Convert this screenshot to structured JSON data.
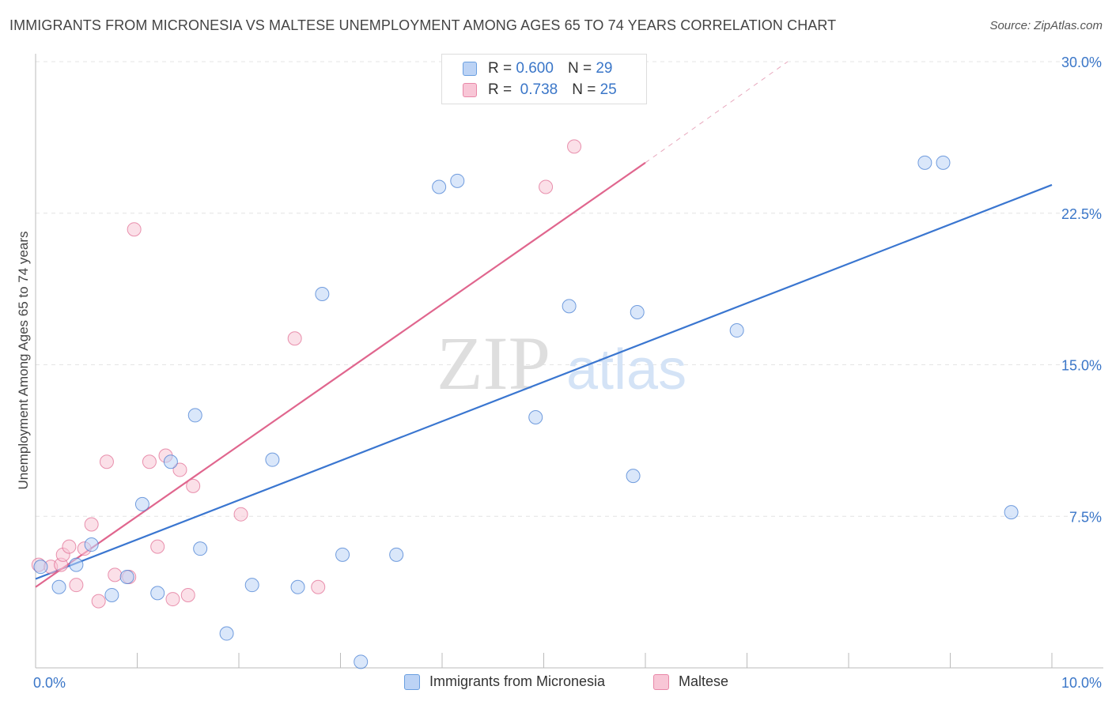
{
  "title": "IMMIGRANTS FROM MICRONESIA VS MALTESE UNEMPLOYMENT AMONG AGES 65 TO 74 YEARS CORRELATION CHART",
  "source": "Source: ZipAtlas.com",
  "watermark": {
    "zip": "ZIP",
    "atlas": "atlas"
  },
  "legend": {
    "micronesia": {
      "r_label": "R =",
      "r_value": "0.600",
      "n_label": "N =",
      "n_value": "29",
      "color": "#6a9fe0",
      "fill": "#bcd3f5"
    },
    "maltese": {
      "r_label": "R =",
      "r_value": "0.738",
      "n_label": "N =",
      "n_value": "25",
      "color": "#e888a8",
      "fill": "#f8c6d6"
    }
  },
  "bottom_legend": {
    "micronesia": "Immigrants from Micronesia",
    "maltese": "Maltese"
  },
  "chart_data": {
    "type": "scatter",
    "title": "IMMIGRANTS FROM MICRONESIA VS MALTESE UNEMPLOYMENT AMONG AGES 65 TO 74 YEARS CORRELATION CHART",
    "xlabel": "",
    "ylabel": "Unemployment Among Ages 65 to 74 years",
    "xlim": [
      0,
      10
    ],
    "ylim": [
      0,
      30
    ],
    "x_tick_labels": [
      "0.0%",
      "10.0%"
    ],
    "y_ticks": [
      7.5,
      15.0,
      22.5,
      30.0
    ],
    "y_tick_labels": [
      "7.5%",
      "15.0%",
      "22.5%",
      "30.0%"
    ],
    "grid": true,
    "series": [
      {
        "name": "Immigrants from Micronesia",
        "color": "#3a76d0",
        "fill": "#bcd3f5",
        "points": [
          [
            0.05,
            5.0
          ],
          [
            0.23,
            4.0
          ],
          [
            0.4,
            5.1
          ],
          [
            0.55,
            6.1
          ],
          [
            0.75,
            3.6
          ],
          [
            0.9,
            4.5
          ],
          [
            1.05,
            8.1
          ],
          [
            1.2,
            3.7
          ],
          [
            1.33,
            10.2
          ],
          [
            1.57,
            12.5
          ],
          [
            1.62,
            5.9
          ],
          [
            1.88,
            1.7
          ],
          [
            2.13,
            4.1
          ],
          [
            2.33,
            10.3
          ],
          [
            2.58,
            4.0
          ],
          [
            2.82,
            18.5
          ],
          [
            3.02,
            5.6
          ],
          [
            3.2,
            0.3
          ],
          [
            3.55,
            5.6
          ],
          [
            3.97,
            23.8
          ],
          [
            4.15,
            24.1
          ],
          [
            4.92,
            12.4
          ],
          [
            5.25,
            17.9
          ],
          [
            5.88,
            9.5
          ],
          [
            5.92,
            17.6
          ],
          [
            6.9,
            16.7
          ],
          [
            8.75,
            25.0
          ],
          [
            8.93,
            25.0
          ],
          [
            9.6,
            7.7
          ]
        ],
        "trend": {
          "x": [
            0,
            10
          ],
          "y": [
            4.4,
            23.9
          ]
        }
      },
      {
        "name": "Maltese",
        "color": "#e0668e",
        "fill": "#f8c6d6",
        "points": [
          [
            0.03,
            5.1
          ],
          [
            0.15,
            5.0
          ],
          [
            0.25,
            5.1
          ],
          [
            0.27,
            5.6
          ],
          [
            0.33,
            6.0
          ],
          [
            0.4,
            4.1
          ],
          [
            0.48,
            5.9
          ],
          [
            0.55,
            7.1
          ],
          [
            0.62,
            3.3
          ],
          [
            0.7,
            10.2
          ],
          [
            0.78,
            4.6
          ],
          [
            0.92,
            4.5
          ],
          [
            0.97,
            21.7
          ],
          [
            1.12,
            10.2
          ],
          [
            1.2,
            6.0
          ],
          [
            1.28,
            10.5
          ],
          [
            1.35,
            3.4
          ],
          [
            1.42,
            9.8
          ],
          [
            1.5,
            3.6
          ],
          [
            1.55,
            9.0
          ],
          [
            2.02,
            7.6
          ],
          [
            2.55,
            16.3
          ],
          [
            2.78,
            4.0
          ],
          [
            5.02,
            23.8
          ],
          [
            5.3,
            25.8
          ]
        ],
        "trend": {
          "x": [
            0,
            6.0
          ],
          "y": [
            4.0,
            25.0
          ]
        },
        "trend_extension": {
          "x": [
            6.0,
            7.4
          ],
          "y": [
            25.0,
            30.0
          ]
        }
      }
    ]
  }
}
